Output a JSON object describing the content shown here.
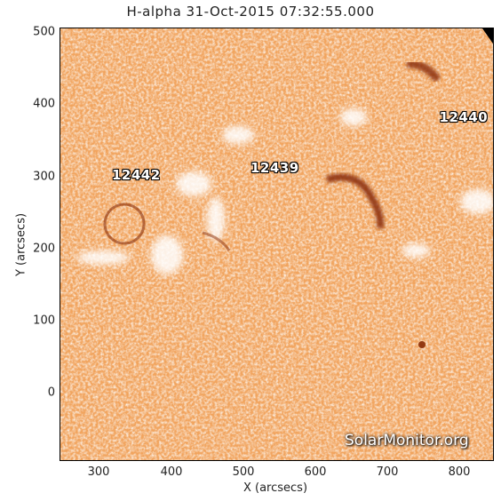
{
  "title": "H-alpha 31-Oct-2015 07:32:55.000",
  "axes": {
    "xlabel": "X (arcsecs)",
    "ylabel": "Y (arcsecs)",
    "xticks": [
      "300",
      "400",
      "500",
      "600",
      "700",
      "800"
    ],
    "yticks": [
      "500",
      "400",
      "300",
      "200",
      "100",
      "0"
    ],
    "xlim": [
      245,
      850
    ],
    "ylim": [
      -95,
      508
    ]
  },
  "regions": [
    {
      "id": "12442",
      "x": 352,
      "y": 303
    },
    {
      "id": "12439",
      "x": 545,
      "y": 313
    },
    {
      "id": "12440",
      "x": 808,
      "y": 383
    }
  ],
  "watermark": "SolarMonitor.org",
  "colors": {
    "base": "#f2a45e",
    "dark_filament": "#8a2e08",
    "bright_plage": "#ffffff"
  }
}
